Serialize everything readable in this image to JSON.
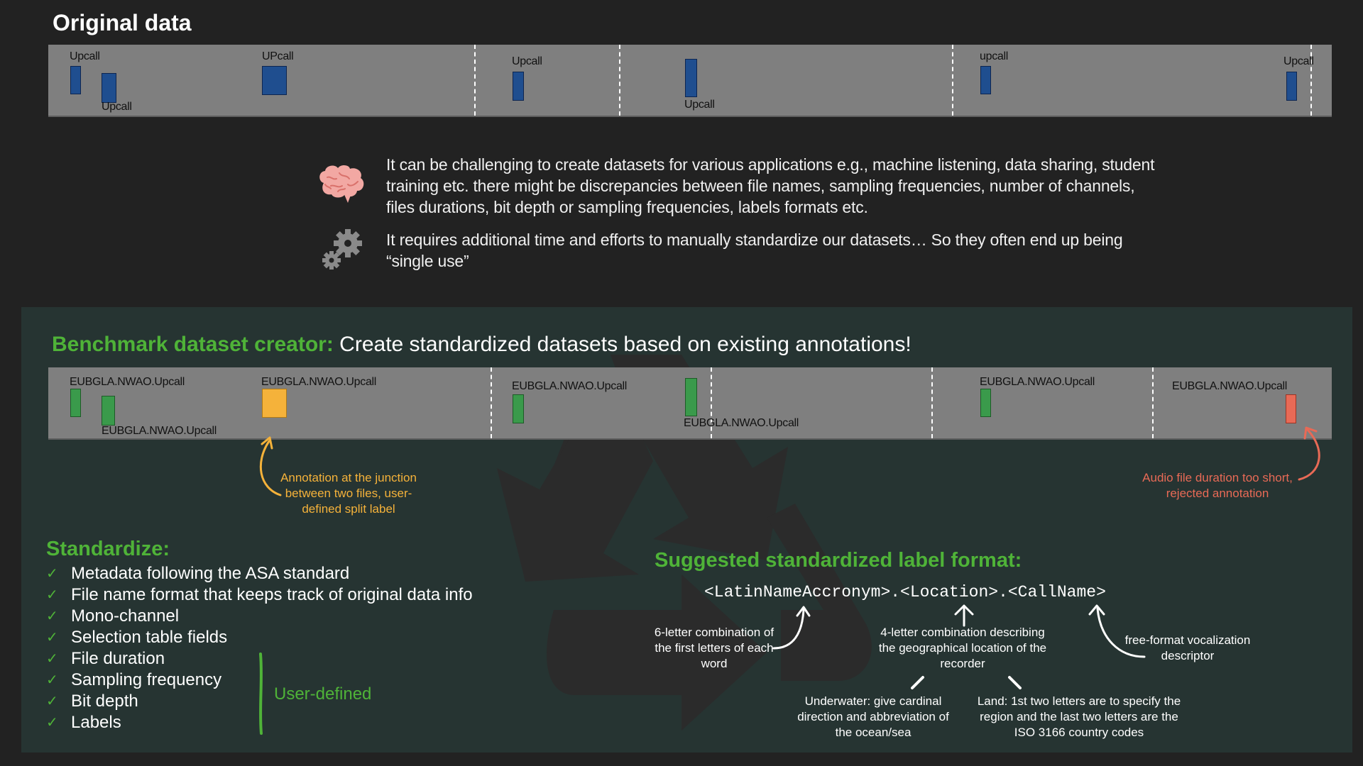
{
  "original": {
    "title": "Original data",
    "labels": [
      "Upcall",
      "Upcall",
      "UPcall",
      "Upcall",
      "Upcall",
      "upcall",
      "Upcall"
    ]
  },
  "info": {
    "text1": "It can be challenging to create datasets for various applications e.g., machine listening, data sharing, student training etc. there might be discrepancies between file names, sampling frequencies, number of channels, files durations, bit depth or sampling frequencies, labels formats etc.",
    "text2": "It requires additional time and efforts to manually standardize our datasets… So they often end up being “single use”",
    "brain_icon": "brain-icon",
    "gears_icon": "gears-icon"
  },
  "benchmark": {
    "title_bold": "Benchmark dataset creator:",
    "title_rest": " Create standardized datasets based on existing annotations!",
    "labels": [
      "EUBGLA.NWAO.Upcall",
      "EUBGLA.NWAO.Upcall",
      "EUBGLA.NWAO.Upcall",
      "EUBGLA.NWAO.Upcall",
      "EUBGLA.NWAO.Upcall",
      "EUBGLA.NWAO.Upcall",
      "EUBGLA.NWAO.Upcall"
    ],
    "note_junction": "Annotation at the junction between two files, user-defined split label",
    "note_rejected": "Audio file duration too short, rejected annotation",
    "colors": {
      "accepted": "#3a9a4b",
      "split": "#f5b23a",
      "rejected": "#e86a56",
      "original": "#1f4e8f",
      "accent": "#4fb338"
    }
  },
  "standardize": {
    "title": "Standardize:",
    "items": [
      "Metadata following the ASA standard",
      "File name format that keeps track of original data info",
      "Mono-channel",
      "Selection table fields",
      "File duration",
      "Sampling frequency",
      "Bit depth",
      "Labels"
    ],
    "check": "✓",
    "user_defined": "User-defined"
  },
  "suggested": {
    "title": "Suggested standardized label format:",
    "format": "<LatinNameAccronym>.<Location>.<CallName>",
    "latin_note": "6-letter combination of the first letters of each word",
    "location_note": "4-letter combination describing the geographical location of the recorder",
    "callname_note": "free-format vocalization descriptor",
    "underwater_note": "Underwater: give cardinal direction and abbreviation of the ocean/sea",
    "land_note": "Land: 1st two letters are to specify the region and the last two letters are the ISO 3166 country codes"
  }
}
